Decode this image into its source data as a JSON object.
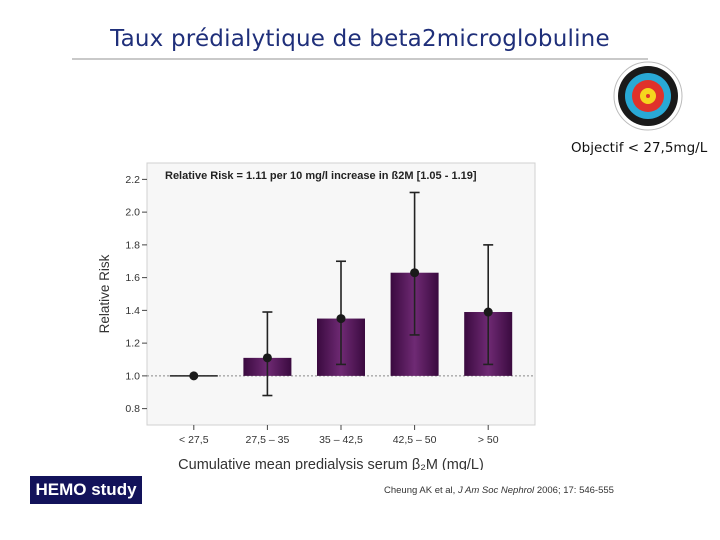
{
  "slide": {
    "title": "Taux prédialytique de beta2microglobuline",
    "objective": "Objectif < 27,5mg/L",
    "logo": "HEMO study",
    "citation": {
      "authors": "Cheung AK et al,",
      "journal": "J Am Soc Nephrol",
      "details": "2006; 17: 546-555"
    },
    "target_icon": "archery-target-icon",
    "colors": {
      "title": "#1f2f7a",
      "bar": "#5b1a5e",
      "logo_bg": "#12125a"
    }
  },
  "chart_data": {
    "type": "bar",
    "title": "Relative Risk = 1.11 per 10 mg/l increase in ß2M [1.05 - 1.19]",
    "xlabel": "Cumulative mean predialysis serum β₂M (mg/L)",
    "ylabel": "Relative Risk",
    "categories": [
      "< 27,5",
      "27,5 – 35",
      "35 – 42,5",
      "42,5 – 50",
      "> 50"
    ],
    "values": [
      1.0,
      1.11,
      1.35,
      1.63,
      1.39
    ],
    "ci_lower": [
      1.0,
      0.88,
      1.07,
      1.25,
      1.07
    ],
    "ci_upper": [
      1.0,
      1.39,
      1.7,
      2.12,
      1.8
    ],
    "ylim": [
      0.7,
      2.3
    ],
    "yticks": [
      "0.8",
      "1.0",
      "1.2",
      "1.4",
      "1.6",
      "1.8",
      "2.0",
      "2.2"
    ],
    "reference_line": 1.0,
    "grid": false
  }
}
